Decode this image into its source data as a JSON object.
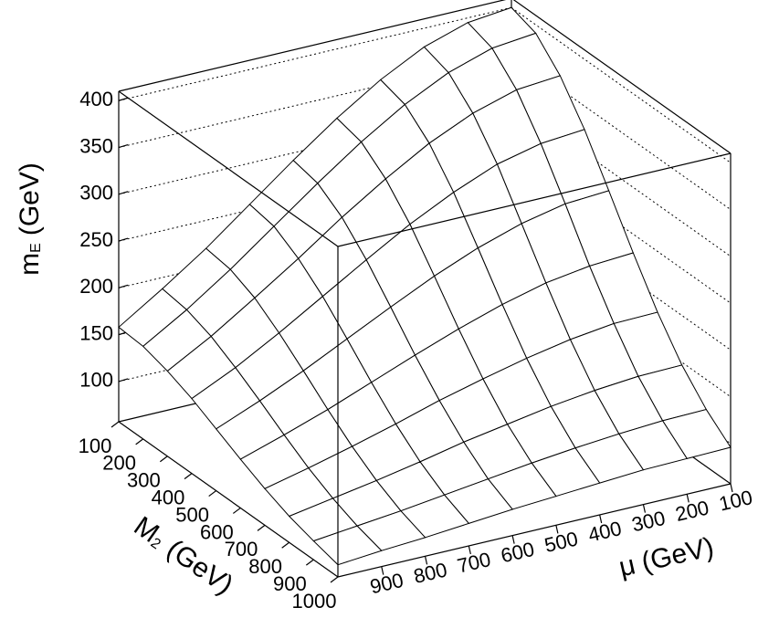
{
  "chart_data": {
    "type": "surface",
    "xlabel": {
      "symbol": "M",
      "subscript": "2",
      "unit": "(GeV)"
    },
    "ylabel": {
      "symbol": "μ",
      "unit": "(GeV)"
    },
    "zlabel": {
      "symbol": "m",
      "subscript": "E",
      "unit": "(GeV)"
    },
    "x": [
      100,
      200,
      300,
      400,
      500,
      600,
      700,
      800,
      900,
      1000
    ],
    "y": [
      100,
      200,
      300,
      400,
      500,
      600,
      700,
      800,
      900,
      1000
    ],
    "z": [
      [
        400,
        395,
        380,
        356,
        326,
        292,
        256,
        220,
        188,
        158
      ],
      [
        391,
        386,
        371,
        348,
        319,
        286,
        251,
        216,
        184,
        156
      ],
      [
        364,
        360,
        346,
        325,
        298,
        268,
        235,
        204,
        174,
        148
      ],
      [
        325,
        321,
        310,
        291,
        268,
        241,
        213,
        185,
        159,
        137
      ],
      [
        278,
        275,
        265,
        250,
        231,
        209,
        186,
        163,
        142,
        123
      ],
      [
        230,
        227,
        220,
        208,
        193,
        176,
        158,
        140,
        124,
        109
      ],
      [
        185,
        184,
        178,
        169,
        158,
        146,
        132,
        119,
        107,
        96
      ],
      [
        147,
        146,
        142,
        136,
        128,
        120,
        110,
        101,
        93,
        85
      ],
      [
        118,
        117,
        114,
        110,
        105,
        99,
        93,
        87,
        82,
        77
      ],
      [
        96,
        95,
        94,
        91,
        88,
        85,
        81,
        77,
        74,
        70
      ]
    ],
    "xlim": [
      100,
      1000
    ],
    "xticks": [
      100,
      200,
      300,
      400,
      500,
      600,
      700,
      800,
      900,
      1000
    ],
    "ylim": [
      100,
      1000
    ],
    "yticks": [
      100,
      200,
      300,
      400,
      500,
      600,
      700,
      800,
      900
    ],
    "zlim": [
      57,
      410
    ],
    "zticks": [
      100,
      150,
      200,
      250,
      300,
      350,
      400
    ],
    "grid": true,
    "mesh_color": "#000000",
    "surface_fill": "#ffffff"
  }
}
